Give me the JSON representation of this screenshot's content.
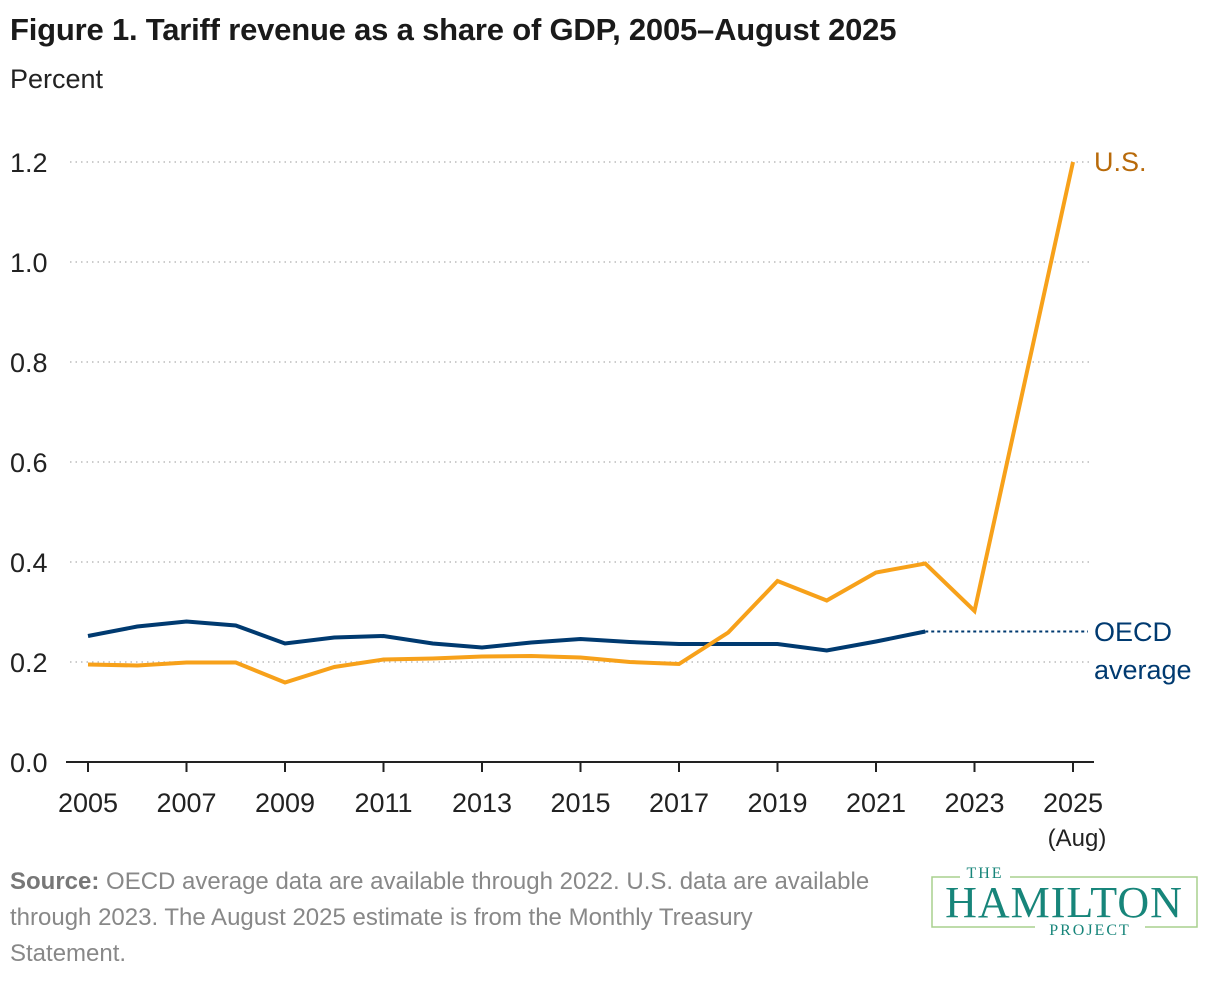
{
  "title": "Figure 1. Tariff revenue as a share of GDP, 2005–August 2025",
  "subtitle": "Percent",
  "source_label": "Source:",
  "source_text": "OECD average data are available through 2022. U.S. data are available through 2023. The August 2025 estimate is from the Monthly Treasury Statement.",
  "logo": {
    "line1": "THE",
    "line2": "HAMILTON",
    "line3": "PROJECT",
    "color": "#17857a",
    "border": "#a8d08d"
  },
  "chart_data": {
    "type": "line",
    "title": "Figure 1. Tariff revenue as a share of GDP, 2005–August 2025",
    "ylabel": "Percent",
    "xlabel": "",
    "ylim": [
      0,
      1.2
    ],
    "yticks": [
      "0.0",
      "0.2",
      "0.4",
      "0.6",
      "0.8",
      "1.0",
      "1.2"
    ],
    "xlim": [
      2005,
      2025
    ],
    "xticks": [
      {
        "value": 2005,
        "label": "2005"
      },
      {
        "value": 2007,
        "label": "2007"
      },
      {
        "value": 2009,
        "label": "2009"
      },
      {
        "value": 2011,
        "label": "2011"
      },
      {
        "value": 2013,
        "label": "2013"
      },
      {
        "value": 2015,
        "label": "2015"
      },
      {
        "value": 2017,
        "label": "2017"
      },
      {
        "value": 2019,
        "label": "2019"
      },
      {
        "value": 2021,
        "label": "2021"
      },
      {
        "value": 2023,
        "label": "2023"
      },
      {
        "value": 2025,
        "label": "2025",
        "sublabel": "(Aug)"
      }
    ],
    "grid": "horizontal dotted",
    "legend": "direct labels at line ends",
    "series": [
      {
        "name": "U.S.",
        "color": "#f7a11a",
        "label_color": "#b86a0a",
        "x": [
          2005,
          2006,
          2007,
          2008,
          2009,
          2010,
          2011,
          2012,
          2013,
          2014,
          2015,
          2016,
          2017,
          2018,
          2019,
          2020,
          2021,
          2022,
          2023,
          2025
        ],
        "values": [
          0.195,
          0.193,
          0.199,
          0.199,
          0.159,
          0.19,
          0.205,
          0.207,
          0.211,
          0.212,
          0.209,
          0.2,
          0.196,
          0.259,
          0.362,
          0.323,
          0.379,
          0.397,
          0.302,
          1.2
        ]
      },
      {
        "name": "OECD average",
        "label_lines": [
          "OECD",
          "average"
        ],
        "color": "#003a70",
        "x": [
          2005,
          2006,
          2007,
          2008,
          2009,
          2010,
          2011,
          2012,
          2013,
          2014,
          2015,
          2016,
          2017,
          2018,
          2019,
          2020,
          2021,
          2022
        ],
        "values": [
          0.252,
          0.271,
          0.281,
          0.273,
          0.237,
          0.249,
          0.252,
          0.237,
          0.229,
          0.239,
          0.246,
          0.24,
          0.236,
          0.236,
          0.236,
          0.223,
          0.241,
          0.261
        ],
        "extension": "dotted line from 2022 value to label"
      }
    ]
  }
}
